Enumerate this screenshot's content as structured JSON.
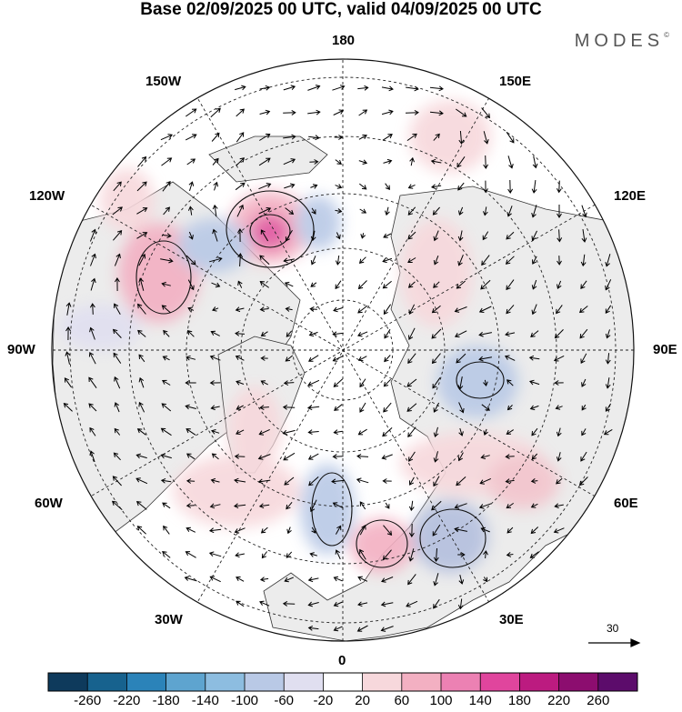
{
  "title": "Base 02/09/2025 00 UTC, valid 04/09/2025 00 UTC",
  "brand": {
    "name": "MODES",
    "mark": "©"
  },
  "map": {
    "projection": "north-polar-stereographic",
    "longitude_labels": {
      "top": "180",
      "bottom": "0",
      "left": "90W",
      "right": "90E",
      "upper_left_1": "150W",
      "upper_left_2": "120W",
      "lower_left_1": "60W",
      "lower_left_2": "30W",
      "upper_right_1": "150E",
      "upper_right_2": "120E",
      "lower_right_1": "60E",
      "lower_right_2": "30E"
    },
    "anomaly_centers": [
      {
        "name": "pink-high-bering",
        "value": 180,
        "color": "#e0559f"
      },
      {
        "name": "red-high-canada",
        "value": 100,
        "color": "#eab1bd"
      },
      {
        "name": "blue-low-siberia",
        "value": -100,
        "color": "#b4bfde"
      },
      {
        "name": "blue-low-russia",
        "value": -100,
        "color": "#b4bfde"
      },
      {
        "name": "red-high-scandinavia",
        "value": 100,
        "color": "#eab1bd"
      },
      {
        "name": "blue-low-north-atlantic",
        "value": -100,
        "color": "#b4bfde"
      }
    ]
  },
  "vector_scale": {
    "value": "30"
  },
  "colorbar": {
    "colors": [
      "#0e3a5c",
      "#17628e",
      "#2b83b9",
      "#5ea4cf",
      "#8dbde0",
      "#b9c9e6",
      "#e0dff0",
      "#ffffff",
      "#f7d8dc",
      "#f3b0c2",
      "#ec81b3",
      "#e0459d",
      "#bc1b80",
      "#8c0d6f",
      "#5c0c6b"
    ],
    "ticks": [
      "-260",
      "-220",
      "-180",
      "-140",
      "-100",
      "-60",
      "-20",
      "20",
      "60",
      "100",
      "140",
      "180",
      "220",
      "260"
    ]
  }
}
